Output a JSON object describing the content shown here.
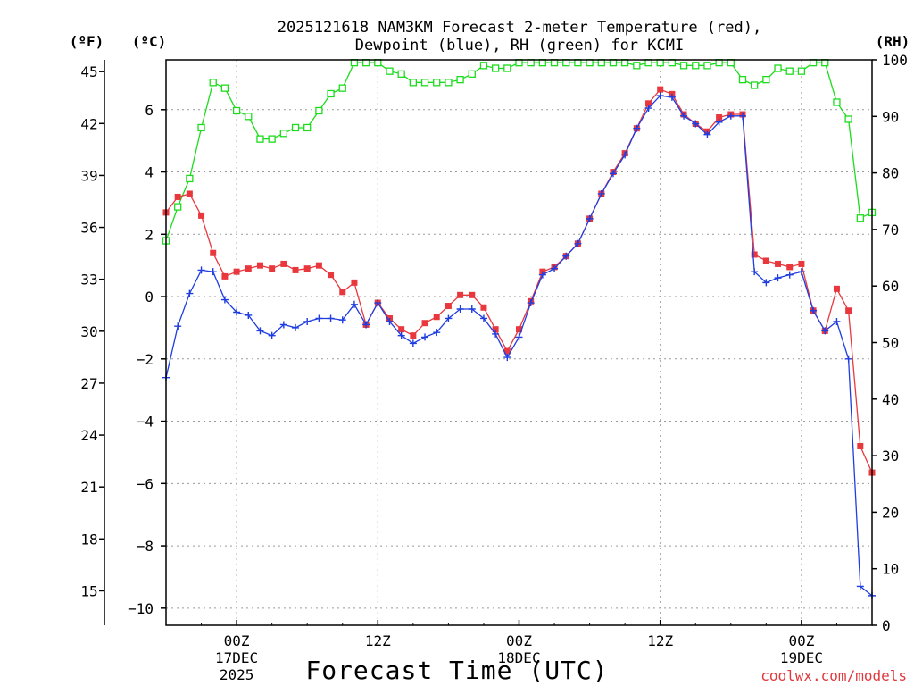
{
  "chart_data": {
    "type": "line",
    "title_line1": "2025121618 NAM3KM Forecast 2-meter Temperature (red),",
    "title_line2": "Dewpoint (blue), RH (green) for KCMI",
    "xlabel": "Forecast Time (UTC)",
    "watermark": "coolwx.com/models",
    "axis_units": {
      "fahrenheit": "(ºF)",
      "celsius": "(ºC)",
      "rh": "(RH)"
    },
    "x_hours_range": [
      -6,
      54
    ],
    "celsius_range": [
      -10.55,
      7.6
    ],
    "rh_range": [
      0,
      100
    ],
    "celsius_ticks": [
      6,
      4,
      2,
      0,
      -2,
      -4,
      -6,
      -8,
      -10
    ],
    "celsius_tick_labels": [
      "6",
      "4",
      "2",
      "0",
      "−2",
      "−4",
      "−6",
      "−8",
      "−10"
    ],
    "fahrenheit_ticks": [
      45,
      42,
      39,
      36,
      33,
      30,
      27,
      24,
      21,
      18,
      15
    ],
    "fahrenheit_tick_labels": [
      "45",
      "42",
      "39",
      "36",
      "33",
      "30",
      "27",
      "24",
      "21",
      "18",
      "15"
    ],
    "rh_ticks": [
      100,
      90,
      80,
      70,
      60,
      50,
      40,
      30,
      20,
      10,
      0
    ],
    "rh_tick_labels": [
      "100",
      "90",
      "80",
      "70",
      "60",
      "50",
      "40",
      "30",
      "20",
      "10",
      "0"
    ],
    "x_ticks": [
      {
        "hour": 0,
        "label": "00Z",
        "sub1": "17DEC",
        "sub2": "2025"
      },
      {
        "hour": 12,
        "label": "12Z",
        "sub1": "",
        "sub2": ""
      },
      {
        "hour": 24,
        "label": "00Z",
        "sub1": "18DEC",
        "sub2": ""
      },
      {
        "hour": 36,
        "label": "12Z",
        "sub1": "",
        "sub2": ""
      },
      {
        "hour": 48,
        "label": "00Z",
        "sub1": "19DEC",
        "sub2": ""
      }
    ],
    "series": [
      {
        "name": "Temperature",
        "color": "#e8383d",
        "marker": "filled-square",
        "axis": "celsius",
        "x": [
          -6,
          -5,
          -4,
          -3,
          -2,
          -1,
          0,
          1,
          2,
          3,
          4,
          5,
          6,
          7,
          8,
          9,
          10,
          11,
          12,
          13,
          14,
          15,
          16,
          17,
          18,
          19,
          20,
          21,
          22,
          23,
          24,
          25,
          26,
          27,
          28,
          29,
          30,
          31,
          32,
          33,
          34,
          35,
          36,
          37,
          38,
          39,
          40,
          41,
          42,
          43,
          44,
          45,
          46,
          47,
          48,
          49,
          50,
          51,
          52,
          53,
          54
        ],
        "values": [
          2.7,
          3.2,
          3.3,
          2.6,
          1.4,
          0.65,
          0.8,
          0.9,
          1.0,
          0.9,
          1.05,
          0.85,
          0.9,
          1.0,
          0.7,
          0.15,
          0.45,
          -0.9,
          -0.2,
          -0.7,
          -1.05,
          -1.25,
          -0.85,
          -0.65,
          -0.3,
          0.05,
          0.05,
          -0.35,
          -1.05,
          -1.75,
          -1.05,
          -0.15,
          0.8,
          0.95,
          1.3,
          1.7,
          2.5,
          3.3,
          4.0,
          4.6,
          5.4,
          6.2,
          6.65,
          6.5,
          5.85,
          5.55,
          5.3,
          5.75,
          5.85,
          5.85,
          1.35,
          1.15,
          1.05,
          0.95,
          1.05,
          -0.45,
          -1.1,
          0.25,
          -0.45,
          -4.8,
          -5.65
        ]
      },
      {
        "name": "Dewpoint",
        "color": "#1f3de0",
        "marker": "plus",
        "axis": "celsius",
        "x": [
          -6,
          -5,
          -4,
          -3,
          -2,
          -1,
          0,
          1,
          2,
          3,
          4,
          5,
          6,
          7,
          8,
          9,
          10,
          11,
          12,
          13,
          14,
          15,
          16,
          17,
          18,
          19,
          20,
          21,
          22,
          23,
          24,
          25,
          26,
          27,
          28,
          29,
          30,
          31,
          32,
          33,
          34,
          35,
          36,
          37,
          38,
          39,
          40,
          41,
          42,
          43,
          44,
          45,
          46,
          47,
          48,
          49,
          50,
          51,
          52,
          53,
          54
        ],
        "values": [
          -2.6,
          -0.95,
          0.1,
          0.85,
          0.8,
          -0.1,
          -0.5,
          -0.6,
          -1.1,
          -1.25,
          -0.9,
          -1.0,
          -0.8,
          -0.7,
          -0.7,
          -0.75,
          -0.25,
          -0.9,
          -0.2,
          -0.8,
          -1.25,
          -1.5,
          -1.3,
          -1.15,
          -0.7,
          -0.4,
          -0.4,
          -0.7,
          -1.2,
          -1.95,
          -1.3,
          -0.2,
          0.7,
          0.9,
          1.3,
          1.7,
          2.5,
          3.3,
          3.95,
          4.55,
          5.4,
          6.05,
          6.45,
          6.4,
          5.8,
          5.55,
          5.2,
          5.6,
          5.8,
          5.8,
          0.8,
          0.45,
          0.6,
          0.7,
          0.8,
          -0.45,
          -1.1,
          -0.8,
          -2.0,
          -9.3,
          -9.6
        ]
      },
      {
        "name": "Relative Humidity",
        "color": "#1ddc1d",
        "marker": "open-square",
        "axis": "rh",
        "x": [
          -6,
          -5,
          -4,
          -3,
          -2,
          -1,
          0,
          1,
          2,
          3,
          4,
          5,
          6,
          7,
          8,
          9,
          10,
          11,
          12,
          13,
          14,
          15,
          16,
          17,
          18,
          19,
          20,
          21,
          22,
          23,
          24,
          25,
          26,
          27,
          28,
          29,
          30,
          31,
          32,
          33,
          34,
          35,
          36,
          37,
          38,
          39,
          40,
          41,
          42,
          43,
          44,
          45,
          46,
          47,
          48,
          49,
          50,
          51,
          52,
          53,
          54
        ],
        "values": [
          68,
          74,
          79,
          88,
          96,
          95,
          91,
          90,
          86,
          86,
          87,
          88,
          88,
          91,
          94,
          95,
          99.5,
          99.5,
          99.5,
          98,
          97.5,
          96,
          96,
          96,
          96,
          96.5,
          97.5,
          99,
          98.5,
          98.5,
          99.5,
          99.5,
          99.5,
          99.5,
          99.5,
          99.5,
          99.5,
          99.5,
          99.5,
          99.5,
          99,
          99.5,
          99.5,
          99.5,
          99,
          99,
          99,
          99.5,
          99.5,
          96.5,
          95.5,
          96.5,
          98.5,
          98,
          98,
          99.5,
          99.5,
          92.5,
          89.5,
          72,
          73
        ]
      }
    ]
  }
}
